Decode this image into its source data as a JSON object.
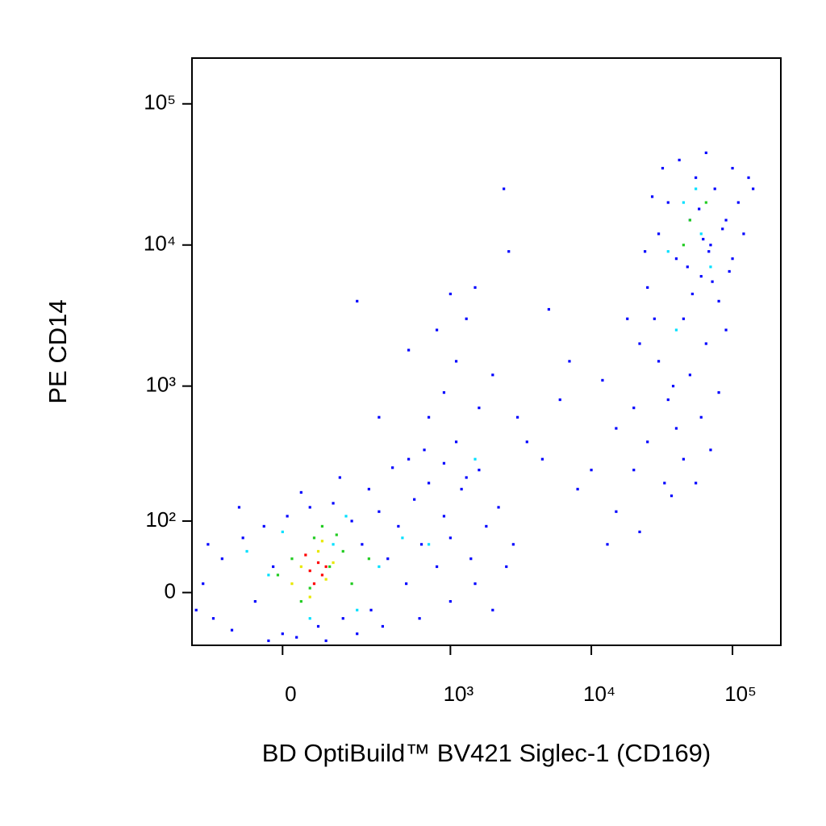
{
  "chart_data": {
    "type": "scatter",
    "xlabel": "BD OptiBuild™ BV421 Siglec-1 (CD169)",
    "ylabel": "PE CD14",
    "xscale": "biexponential",
    "yscale": "biexponential",
    "xlim": [
      -270,
      220000
    ],
    "ylim": [
      -67,
      211000
    ],
    "xticks": [
      0,
      {
        "value": 1000,
        "label": "10³"
      },
      {
        "value": 10000,
        "label": "10⁴"
      },
      {
        "value": 100000,
        "label": "10⁵"
      }
    ],
    "yticks": [
      0,
      {
        "value": 100,
        "label": "10²"
      },
      {
        "value": 1000,
        "label": "10³"
      },
      {
        "value": 10000,
        "label": "10⁴"
      },
      {
        "value": 100000,
        "label": "10⁵"
      }
    ],
    "series": [
      {
        "color": "#0000ff",
        "x": [
          -220,
          -180,
          -150,
          -120,
          -90,
          -60,
          -40,
          -20,
          0,
          10,
          30,
          60,
          80,
          120,
          150,
          180,
          220,
          260,
          300,
          350,
          420,
          480,
          550,
          620,
          700,
          800,
          900,
          1000,
          1200,
          1400,
          1600,
          1800,
          2200,
          2800,
          -250,
          -200,
          -100,
          40,
          140,
          250,
          380,
          500,
          650,
          900,
          1100,
          1300,
          -30,
          100,
          200,
          320,
          600,
          1000,
          1500,
          2000,
          2500,
          700,
          900,
          1100,
          1300,
          1000,
          800,
          1600,
          2000,
          2400,
          2600,
          1500,
          3000,
          3500,
          4500,
          6000,
          7000,
          5000,
          12000,
          15000,
          18000,
          20000,
          25000,
          15000,
          22000,
          10000,
          13000,
          8000,
          200,
          300,
          500,
          25000,
          30000,
          35000,
          40000,
          45000,
          50000,
          55000,
          60000,
          65000,
          70000,
          75000,
          80000,
          90000,
          100000,
          110000,
          130000,
          30000,
          35000,
          40000,
          45000,
          50000,
          55000,
          60000,
          70000,
          80000,
          90000,
          28000,
          32000,
          38000,
          42000,
          48000,
          52000,
          58000,
          62000,
          68000,
          72000,
          85000,
          95000,
          20000,
          22000,
          24000,
          27000,
          33000,
          37000,
          65000,
          100000,
          120000,
          140000
        ],
        "y": [
          10,
          -30,
          40,
          -45,
          70,
          -10,
          90,
          30,
          -50,
          110,
          -55,
          130,
          -40,
          140,
          -30,
          100,
          60,
          -20,
          120,
          40,
          90,
          10,
          150,
          60,
          200,
          30,
          110,
          70,
          180,
          40,
          250,
          90,
          130,
          60,
          -20,
          60,
          130,
          170,
          220,
          180,
          260,
          300,
          350,
          280,
          400,
          220,
          -60,
          -60,
          -50,
          -40,
          -30,
          -10,
          10,
          -20,
          30,
          600,
          900,
          1500,
          3000,
          4500,
          2500,
          700,
          1200,
          25000,
          9000,
          5000,
          600,
          400,
          300,
          800,
          1500,
          3500,
          1100,
          500,
          3000,
          250,
          400,
          120,
          80,
          250,
          60,
          180,
          4000,
          600,
          1800,
          5000,
          12000,
          20000,
          8000,
          3000,
          15000,
          30000,
          6000,
          2000,
          10000,
          25000,
          4000,
          15000,
          8000,
          20000,
          30000,
          1500,
          800,
          500,
          300,
          1200,
          200,
          600,
          350,
          900,
          2500,
          3000,
          35000,
          1000,
          40000,
          7000,
          4500,
          18000,
          11000,
          9000,
          5500,
          13000,
          6500,
          700,
          2000,
          9000,
          22000,
          200,
          160,
          45000,
          35000,
          12000,
          25000
        ]
      },
      {
        "color": "#00e0ff",
        "x": [
          -30,
          120,
          200,
          0,
          300,
          60,
          450,
          -80,
          160,
          700,
          1500,
          45000,
          60000,
          35000,
          55000,
          40000,
          70000
        ],
        "y": [
          20,
          60,
          -20,
          80,
          30,
          -30,
          70,
          50,
          110,
          60,
          300,
          20000,
          12000,
          9000,
          25000,
          2500,
          7000
        ]
      },
      {
        "color": "#22cc22",
        "x": [
          20,
          70,
          110,
          40,
          150,
          -10,
          90,
          180,
          60,
          130,
          250,
          50000,
          65000,
          45000
        ],
        "y": [
          40,
          70,
          30,
          -10,
          50,
          20,
          90,
          10,
          5,
          75,
          40,
          15000,
          20000,
          10000
        ]
      },
      {
        "color": "#e8e800",
        "x": [
          40,
          80,
          100,
          60,
          120,
          20,
          90
        ],
        "y": [
          30,
          50,
          15,
          -5,
          35,
          10,
          65
        ]
      },
      {
        "color": "#ff0000",
        "x": [
          60,
          80,
          70,
          90,
          50,
          100
        ],
        "y": [
          25,
          35,
          10,
          20,
          45,
          30
        ]
      }
    ]
  }
}
